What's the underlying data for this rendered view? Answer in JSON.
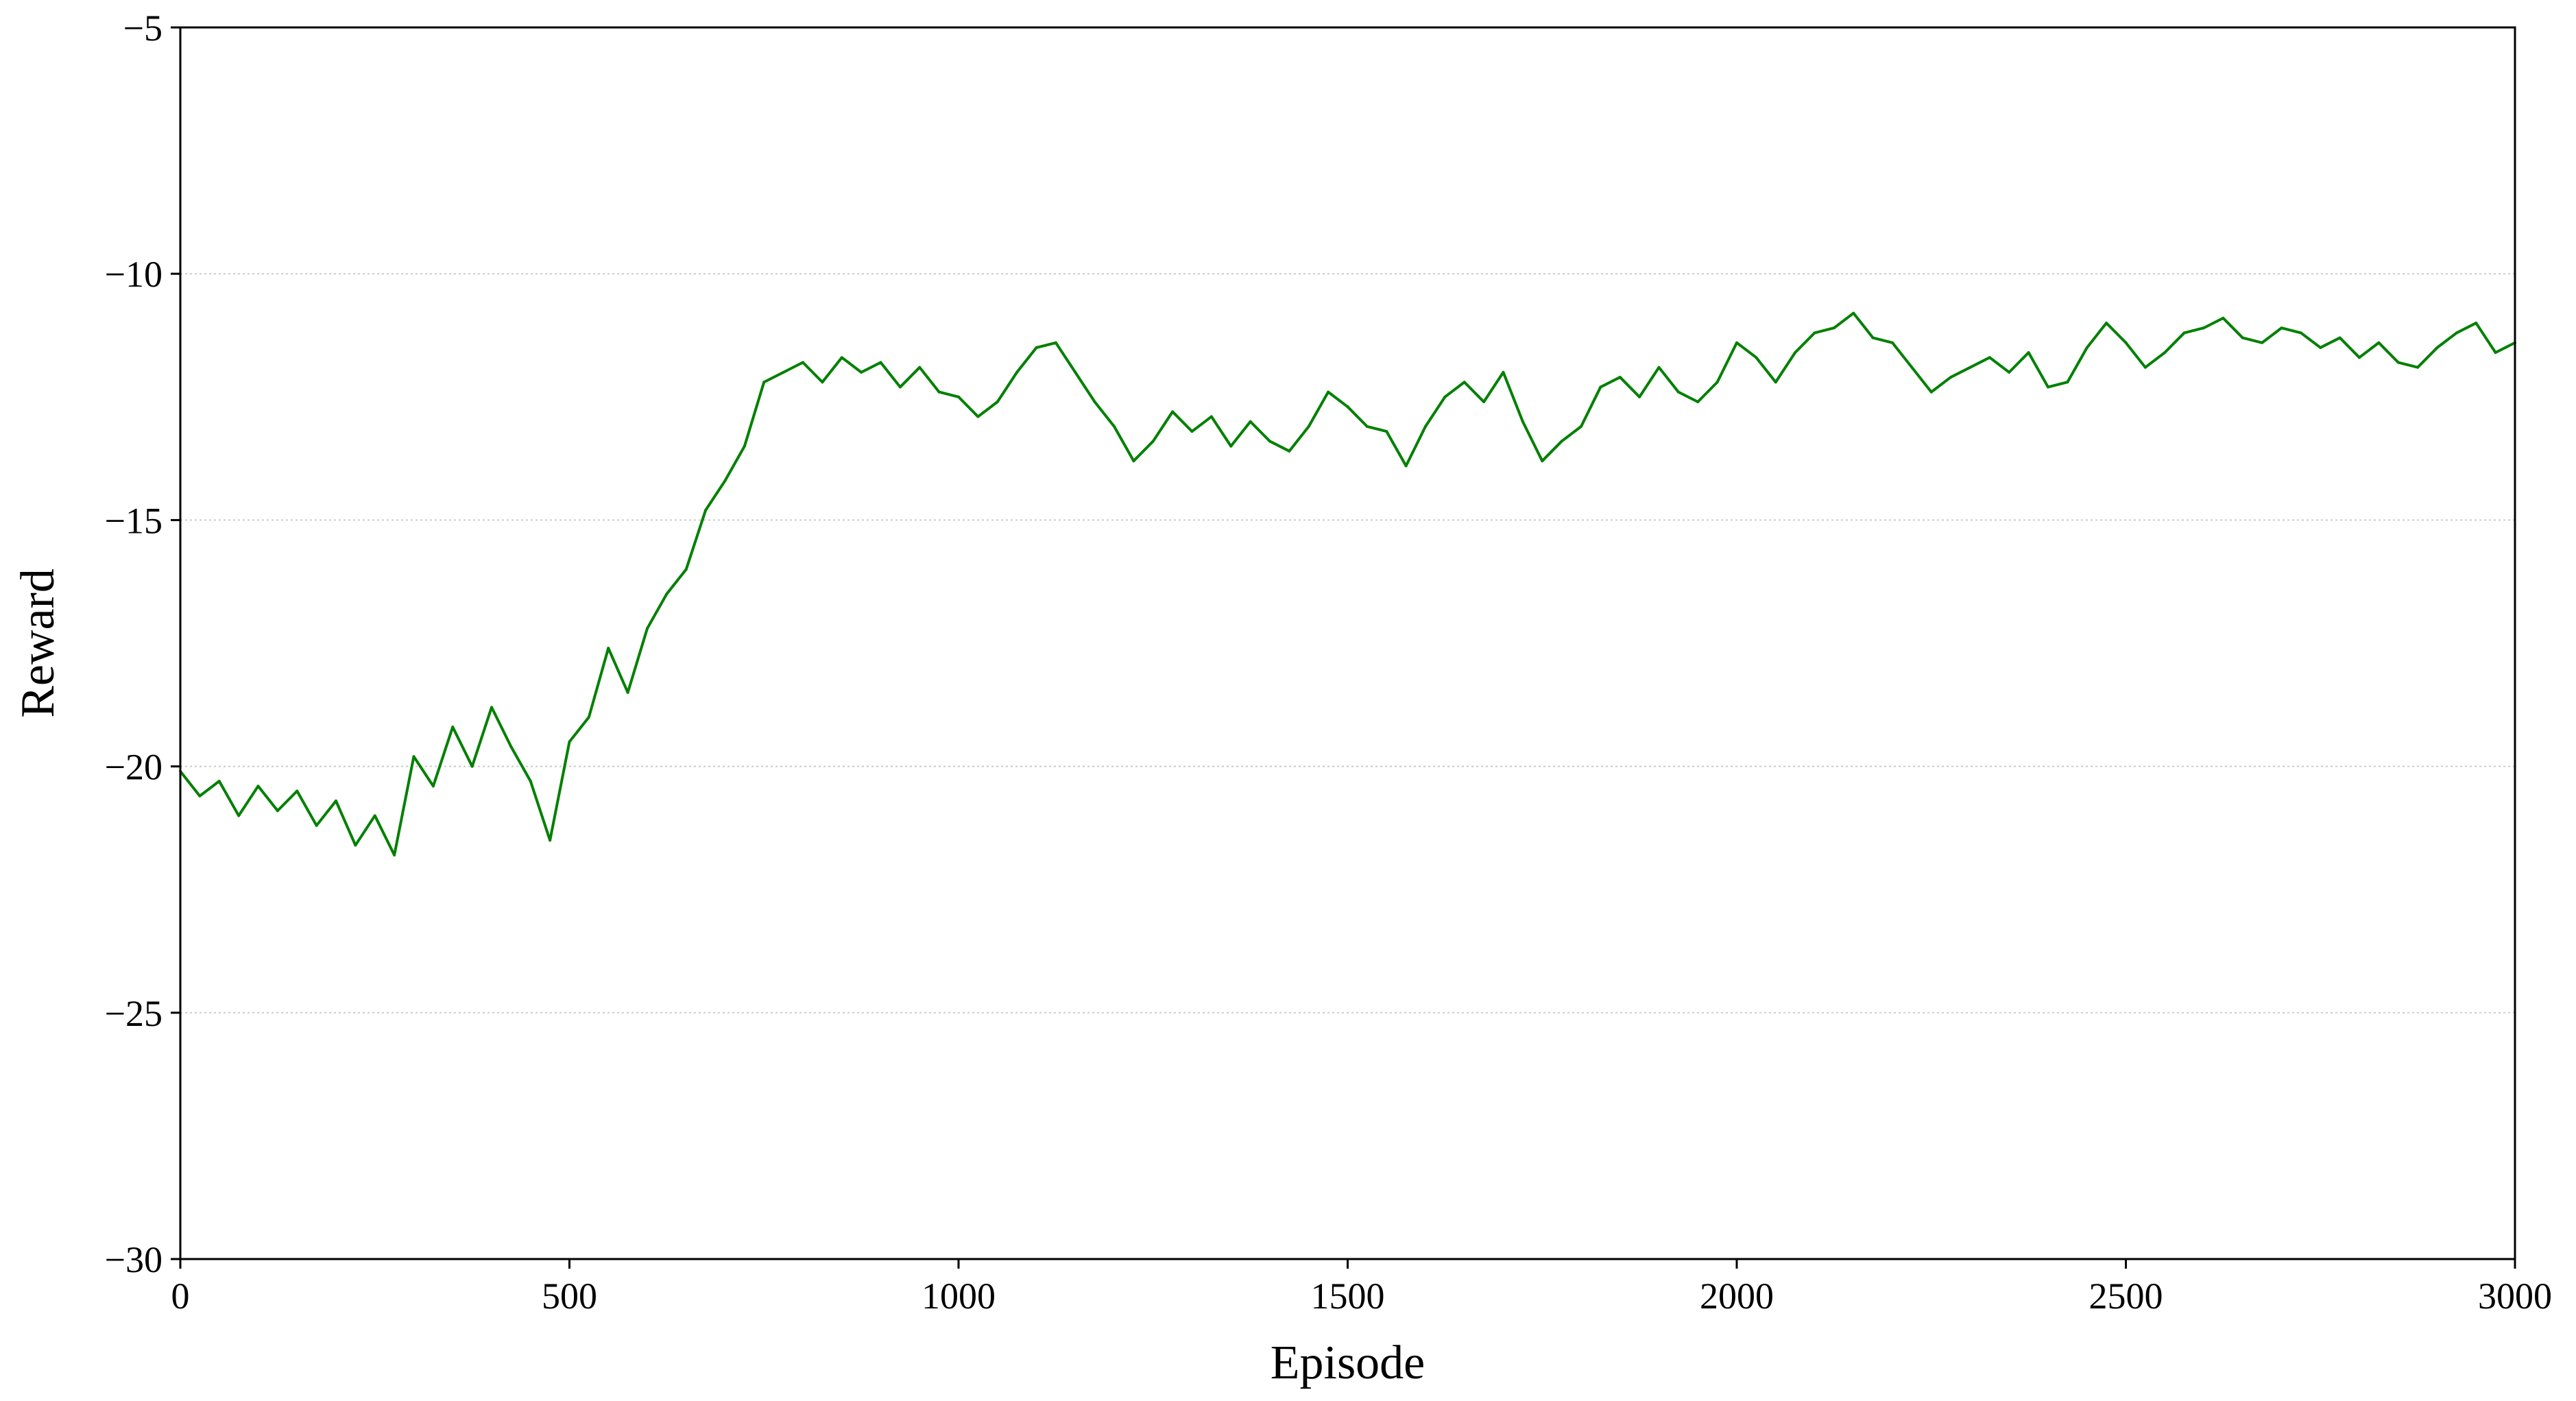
{
  "chart_data": {
    "type": "line",
    "title": "",
    "xlabel": "Episode",
    "ylabel": "Reward",
    "xlim": [
      0,
      3000
    ],
    "ylim": [
      -30,
      -5
    ],
    "x_ticks": [
      "0",
      "500",
      "1000",
      "1500",
      "2000",
      "2500",
      "3000"
    ],
    "y_ticks": [
      "−30",
      "−25",
      "−20",
      "−15",
      "−10",
      "−5"
    ],
    "grid": "horizontal dotted",
    "legend": "none",
    "series": [
      {
        "color": "#008000",
        "x": [
          0,
          25,
          50,
          75,
          100,
          125,
          150,
          175,
          200,
          225,
          250,
          275,
          300,
          325,
          350,
          375,
          400,
          425,
          450,
          475,
          500,
          525,
          550,
          575,
          600,
          625,
          650,
          675,
          700,
          725,
          750,
          775,
          800,
          825,
          850,
          875,
          900,
          925,
          950,
          975,
          1000,
          1025,
          1050,
          1075,
          1100,
          1125,
          1150,
          1175,
          1200,
          1225,
          1250,
          1275,
          1300,
          1325,
          1350,
          1375,
          1400,
          1425,
          1450,
          1475,
          1500,
          1525,
          1550,
          1575,
          1600,
          1625,
          1650,
          1675,
          1700,
          1725,
          1750,
          1775,
          1800,
          1825,
          1850,
          1875,
          1900,
          1925,
          1950,
          1975,
          2000,
          2025,
          2050,
          2075,
          2100,
          2125,
          2150,
          2175,
          2200,
          2225,
          2250,
          2275,
          2300,
          2325,
          2350,
          2375,
          2400,
          2425,
          2450,
          2475,
          2500,
          2525,
          2550,
          2575,
          2600,
          2625,
          2650,
          2675,
          2700,
          2725,
          2750,
          2775,
          2800,
          2825,
          2850,
          2875,
          2900,
          2925,
          2950,
          2975,
          3000
        ],
        "values": [
          -20.1,
          -20.6,
          -20.3,
          -21.0,
          -20.4,
          -20.9,
          -20.5,
          -21.2,
          -20.7,
          -21.6,
          -21.0,
          -21.8,
          -19.8,
          -20.4,
          -19.2,
          -20.0,
          -18.8,
          -19.6,
          -20.3,
          -21.5,
          -19.5,
          -19.0,
          -17.6,
          -18.5,
          -17.2,
          -16.5,
          -16.0,
          -14.8,
          -14.2,
          -13.5,
          -12.2,
          -12.0,
          -11.8,
          -12.2,
          -11.7,
          -12.0,
          -11.8,
          -12.3,
          -11.9,
          -12.4,
          -12.5,
          -12.9,
          -12.6,
          -12.0,
          -11.5,
          -11.4,
          -12.0,
          -12.6,
          -13.1,
          -13.8,
          -13.4,
          -12.8,
          -13.2,
          -12.9,
          -13.5,
          -13.0,
          -13.4,
          -13.6,
          -13.1,
          -12.4,
          -12.7,
          -13.1,
          -13.2,
          -13.9,
          -13.1,
          -12.5,
          -12.2,
          -12.6,
          -12.0,
          -13.0,
          -13.8,
          -13.4,
          -13.1,
          -12.3,
          -12.1,
          -12.5,
          -11.9,
          -12.4,
          -12.6,
          -12.2,
          -11.4,
          -11.7,
          -12.2,
          -11.6,
          -11.2,
          -11.1,
          -10.8,
          -11.3,
          -11.4,
          -11.9,
          -12.4,
          -12.1,
          -11.9,
          -11.7,
          -12.0,
          -11.6,
          -12.3,
          -12.2,
          -11.5,
          -11.0,
          -11.4,
          -11.9,
          -11.6,
          -11.2,
          -11.1,
          -10.9,
          -11.3,
          -11.4,
          -11.1,
          -11.2,
          -11.5,
          -11.3,
          -11.7,
          -11.4,
          -11.8,
          -11.9,
          -11.5,
          -11.2,
          -11.0,
          -11.6,
          -11.4
        ]
      }
    ]
  }
}
